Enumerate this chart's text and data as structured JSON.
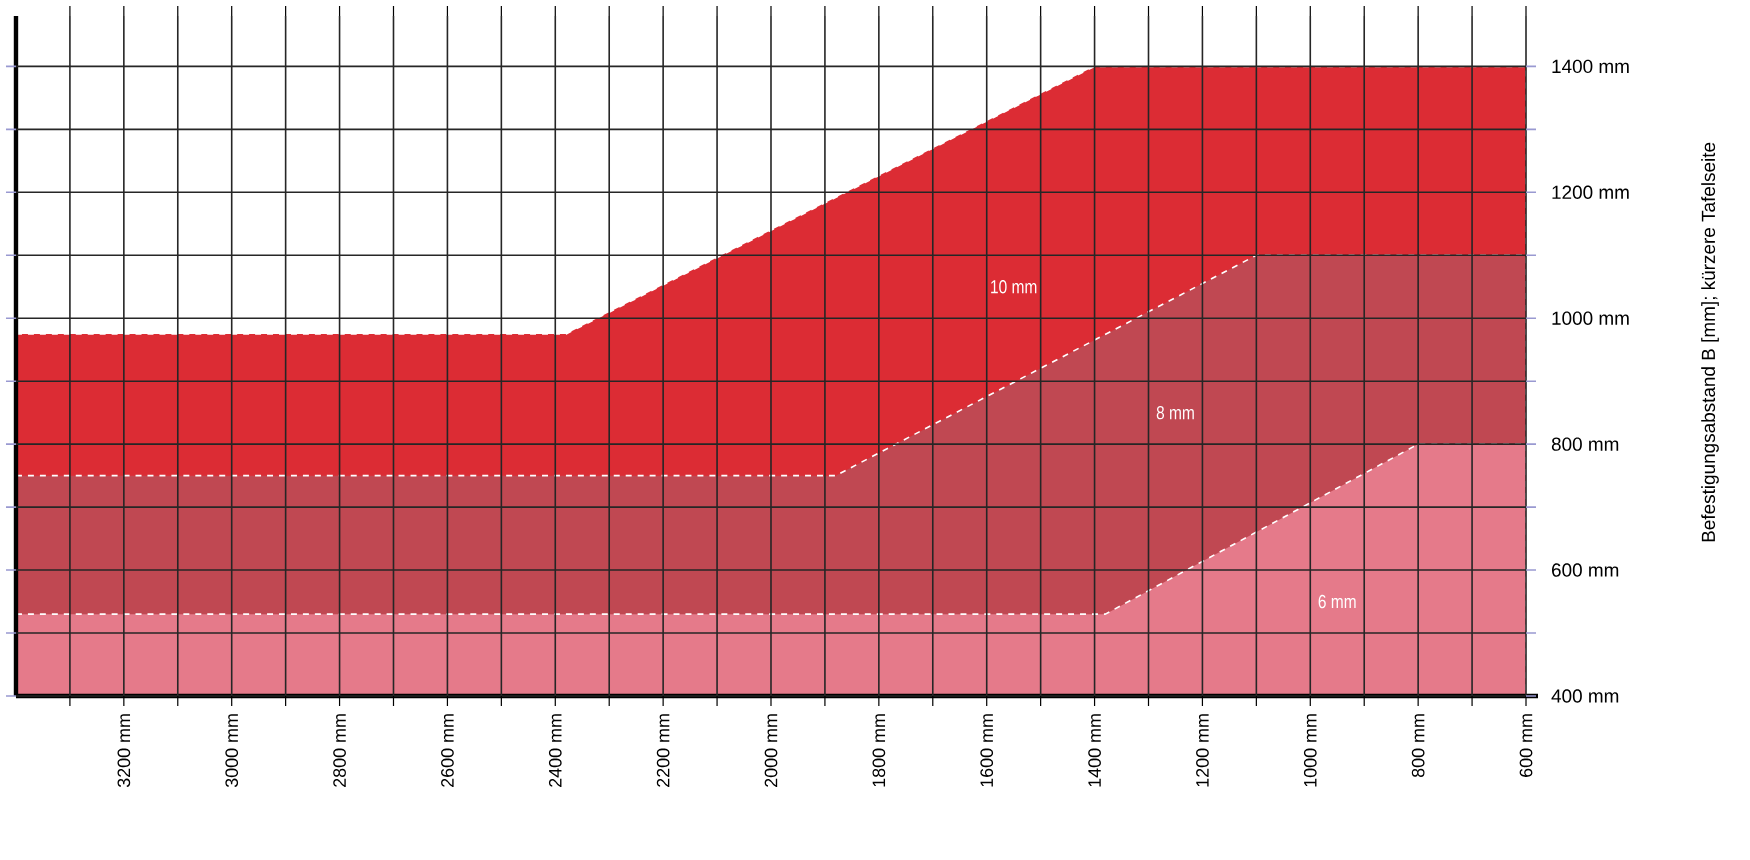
{
  "chart_data": {
    "type": "area",
    "ylabel": "Befestigungsabstand B [mm]; kürzere Tafelseite",
    "xlim": [
      3400,
      600
    ],
    "ylim": [
      400,
      1480
    ],
    "xticks": [
      {
        "value": 3300,
        "label": null
      },
      {
        "value": 3200,
        "label": "3200 mm"
      },
      {
        "value": 3100,
        "label": null
      },
      {
        "value": 3000,
        "label": "3000 mm"
      },
      {
        "value": 2900,
        "label": null
      },
      {
        "value": 2800,
        "label": "2800 mm"
      },
      {
        "value": 2700,
        "label": null
      },
      {
        "value": 2600,
        "label": "2600 mm"
      },
      {
        "value": 2500,
        "label": null
      },
      {
        "value": 2400,
        "label": "2400 mm"
      },
      {
        "value": 2300,
        "label": null
      },
      {
        "value": 2200,
        "label": "2200 mm"
      },
      {
        "value": 2100,
        "label": null
      },
      {
        "value": 2000,
        "label": "2000 mm"
      },
      {
        "value": 1900,
        "label": null
      },
      {
        "value": 1800,
        "label": "1800 mm"
      },
      {
        "value": 1700,
        "label": null
      },
      {
        "value": 1600,
        "label": "1600 mm"
      },
      {
        "value": 1500,
        "label": null
      },
      {
        "value": 1400,
        "label": "1400 mm"
      },
      {
        "value": 1300,
        "label": null
      },
      {
        "value": 1200,
        "label": "1200 mm"
      },
      {
        "value": 1100,
        "label": null
      },
      {
        "value": 1000,
        "label": "1000 mm"
      },
      {
        "value": 900,
        "label": null
      },
      {
        "value": 800,
        "label": "800 mm"
      },
      {
        "value": 700,
        "label": null
      },
      {
        "value": 600,
        "label": "600 mm"
      }
    ],
    "yticks": [
      {
        "value": 400,
        "label": "400 mm"
      },
      {
        "value": 500,
        "label": null
      },
      {
        "value": 600,
        "label": "600 mm"
      },
      {
        "value": 700,
        "label": null
      },
      {
        "value": 800,
        "label": "800 mm"
      },
      {
        "value": 900,
        "label": null
      },
      {
        "value": 1000,
        "label": "1000 mm"
      },
      {
        "value": 1100,
        "label": null
      },
      {
        "value": 1200,
        "label": "1200 mm"
      },
      {
        "value": 1300,
        "label": null
      },
      {
        "value": 1400,
        "label": "1400 mm"
      }
    ],
    "grid": true,
    "legend": false,
    "line_style": "dashed",
    "series": [
      {
        "name": "10 mm",
        "color": "#dc2c34",
        "x": [
          3400,
          2380,
          1400,
          600
        ],
        "values": [
          975,
          975,
          1400,
          1400
        ]
      },
      {
        "name": "8 mm",
        "color": "#c04852",
        "x": [
          3400,
          1880,
          1100,
          600
        ],
        "values": [
          750,
          750,
          1100,
          1100
        ]
      },
      {
        "name": "6 mm",
        "color": "#e57a8a",
        "x": [
          3400,
          1380,
          800,
          600
        ],
        "values": [
          530,
          530,
          800,
          800
        ]
      }
    ]
  }
}
